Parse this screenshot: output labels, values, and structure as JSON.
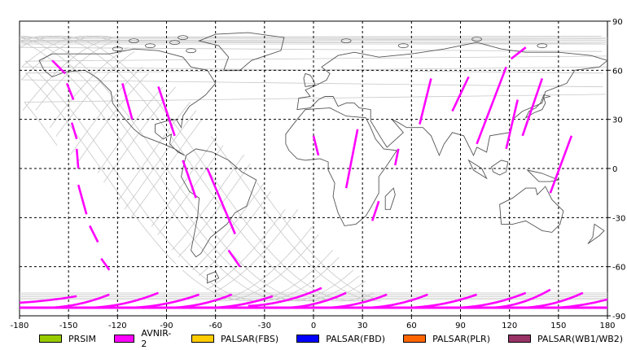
{
  "chart_data": {
    "type": "map",
    "title": "",
    "projection": "equirectangular",
    "xlim": [
      -180,
      180
    ],
    "ylim": [
      -90,
      90
    ],
    "grid": true,
    "x_ticks": [
      -180,
      -150,
      -120,
      -90,
      -60,
      -30,
      0,
      30,
      60,
      90,
      120,
      150,
      180
    ],
    "y_ticks": [
      90,
      60,
      30,
      0,
      -30,
      -60,
      -90
    ],
    "legend": [
      {
        "name": "PRSIM",
        "color": "#99cc00"
      },
      {
        "name": "AVNIR-2",
        "color": "#ff00ff"
      },
      {
        "name": "PALSAR(FBS)",
        "color": "#ffcc00"
      },
      {
        "name": "PALSAR(FBD)",
        "color": "#0000ff"
      },
      {
        "name": "PALSAR(PLR)",
        "color": "#ff6600"
      },
      {
        "name": "PALSAR(WB1/WB2)",
        "color": "#993366"
      }
    ],
    "acquisition_segments_avnir2": [
      [
        [
          -160,
          66
        ],
        [
          -152,
          58
        ]
      ],
      [
        [
          -151,
          52
        ],
        [
          -147,
          42
        ]
      ],
      [
        [
          -148,
          28
        ],
        [
          -145,
          18
        ]
      ],
      [
        [
          -145,
          12
        ],
        [
          -144,
          0
        ]
      ],
      [
        [
          -144,
          -10
        ],
        [
          -139,
          -28
        ]
      ],
      [
        [
          -137,
          -35
        ],
        [
          -132,
          -45
        ]
      ],
      [
        [
          -130,
          -55
        ],
        [
          -125,
          -62
        ]
      ],
      [
        [
          -117,
          52
        ],
        [
          -111,
          30
        ]
      ],
      [
        [
          -95,
          50
        ],
        [
          -85,
          20
        ]
      ],
      [
        [
          -80,
          5
        ],
        [
          -72,
          -18
        ]
      ],
      [
        [
          -65,
          0
        ],
        [
          -48,
          -40
        ]
      ],
      [
        [
          -52,
          -50
        ],
        [
          -45,
          -60
        ]
      ],
      [
        [
          0,
          20
        ],
        [
          3,
          8
        ]
      ],
      [
        [
          27,
          24
        ],
        [
          20,
          -12
        ]
      ],
      [
        [
          40,
          -20
        ],
        [
          36,
          -32
        ]
      ],
      [
        [
          52,
          12
        ],
        [
          50,
          2
        ]
      ],
      [
        [
          72,
          55
        ],
        [
          65,
          27
        ]
      ],
      [
        [
          95,
          56
        ],
        [
          85,
          35
        ]
      ],
      [
        [
          118,
          62
        ],
        [
          100,
          15
        ]
      ],
      [
        [
          125,
          42
        ],
        [
          118,
          12
        ]
      ],
      [
        [
          140,
          55
        ],
        [
          128,
          20
        ]
      ],
      [
        [
          130,
          74
        ],
        [
          121,
          67
        ]
      ],
      [
        [
          158,
          20
        ],
        [
          145,
          -15
        ]
      ]
    ],
    "acquisition_segments_south_avnir2": [
      [
        [
          -180,
          -82
        ],
        [
          -145,
          -78
        ]
      ],
      [
        [
          -160,
          -85
        ],
        [
          -125,
          -77
        ]
      ],
      [
        [
          -135,
          -85
        ],
        [
          -95,
          -76
        ]
      ],
      [
        [
          -110,
          -85
        ],
        [
          -70,
          -77
        ]
      ],
      [
        [
          -85,
          -85
        ],
        [
          -50,
          -77
        ]
      ],
      [
        [
          -60,
          -85
        ],
        [
          -25,
          -78
        ]
      ],
      [
        [
          -40,
          -84
        ],
        [
          5,
          -73
        ]
      ],
      [
        [
          -15,
          -85
        ],
        [
          20,
          -76
        ]
      ],
      [
        [
          10,
          -85
        ],
        [
          45,
          -77
        ]
      ],
      [
        [
          35,
          -85
        ],
        [
          70,
          -77
        ]
      ],
      [
        [
          60,
          -85
        ],
        [
          100,
          -77
        ]
      ],
      [
        [
          90,
          -85
        ],
        [
          130,
          -76
        ]
      ],
      [
        [
          110,
          -85
        ],
        [
          145,
          -74
        ]
      ],
      [
        [
          130,
          -85
        ],
        [
          165,
          -76
        ]
      ],
      [
        [
          150,
          -85
        ],
        [
          180,
          -80
        ]
      ]
    ]
  }
}
